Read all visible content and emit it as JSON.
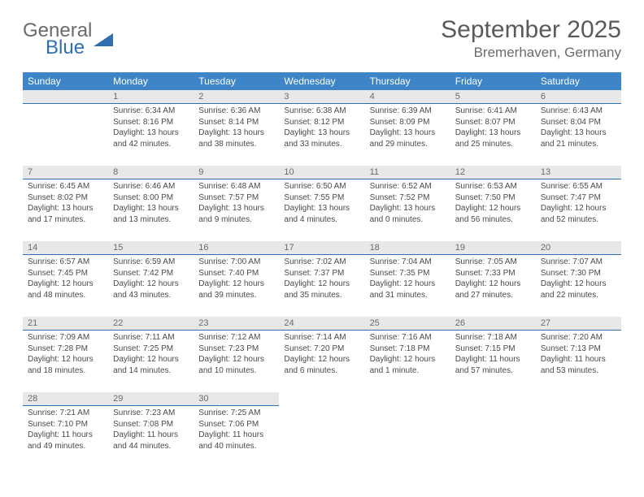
{
  "colors": {
    "header_bg": "#3d85c6",
    "header_text": "#ffffff",
    "daynum_bg": "#e8e8e8",
    "daynum_underline": "#2f6fb0",
    "body_text": "#4a4a4a",
    "title_text": "#5a5a5a",
    "logo_gray": "#6b6b6b",
    "logo_blue": "#2f6fb0",
    "background": "#ffffff"
  },
  "typography": {
    "title_fontsize": 30,
    "location_fontsize": 17,
    "weekday_fontsize": 12,
    "daynum_fontsize": 11,
    "cell_fontsize": 10,
    "font_family": "Arial"
  },
  "logo": {
    "word1": "General",
    "word2": "Blue"
  },
  "title": "September 2025",
  "location": "Bremerhaven, Germany",
  "weekdays": [
    "Sunday",
    "Monday",
    "Tuesday",
    "Wednesday",
    "Thursday",
    "Friday",
    "Saturday"
  ],
  "calendar": {
    "type": "table",
    "columns": 7,
    "rows": 5,
    "start_weekday_index": 1,
    "days": [
      {
        "n": "1",
        "sunrise": "6:34 AM",
        "sunset": "8:16 PM",
        "daylight": "13 hours and 42 minutes."
      },
      {
        "n": "2",
        "sunrise": "6:36 AM",
        "sunset": "8:14 PM",
        "daylight": "13 hours and 38 minutes."
      },
      {
        "n": "3",
        "sunrise": "6:38 AM",
        "sunset": "8:12 PM",
        "daylight": "13 hours and 33 minutes."
      },
      {
        "n": "4",
        "sunrise": "6:39 AM",
        "sunset": "8:09 PM",
        "daylight": "13 hours and 29 minutes."
      },
      {
        "n": "5",
        "sunrise": "6:41 AM",
        "sunset": "8:07 PM",
        "daylight": "13 hours and 25 minutes."
      },
      {
        "n": "6",
        "sunrise": "6:43 AM",
        "sunset": "8:04 PM",
        "daylight": "13 hours and 21 minutes."
      },
      {
        "n": "7",
        "sunrise": "6:45 AM",
        "sunset": "8:02 PM",
        "daylight": "13 hours and 17 minutes."
      },
      {
        "n": "8",
        "sunrise": "6:46 AM",
        "sunset": "8:00 PM",
        "daylight": "13 hours and 13 minutes."
      },
      {
        "n": "9",
        "sunrise": "6:48 AM",
        "sunset": "7:57 PM",
        "daylight": "13 hours and 9 minutes."
      },
      {
        "n": "10",
        "sunrise": "6:50 AM",
        "sunset": "7:55 PM",
        "daylight": "13 hours and 4 minutes."
      },
      {
        "n": "11",
        "sunrise": "6:52 AM",
        "sunset": "7:52 PM",
        "daylight": "13 hours and 0 minutes."
      },
      {
        "n": "12",
        "sunrise": "6:53 AM",
        "sunset": "7:50 PM",
        "daylight": "12 hours and 56 minutes."
      },
      {
        "n": "13",
        "sunrise": "6:55 AM",
        "sunset": "7:47 PM",
        "daylight": "12 hours and 52 minutes."
      },
      {
        "n": "14",
        "sunrise": "6:57 AM",
        "sunset": "7:45 PM",
        "daylight": "12 hours and 48 minutes."
      },
      {
        "n": "15",
        "sunrise": "6:59 AM",
        "sunset": "7:42 PM",
        "daylight": "12 hours and 43 minutes."
      },
      {
        "n": "16",
        "sunrise": "7:00 AM",
        "sunset": "7:40 PM",
        "daylight": "12 hours and 39 minutes."
      },
      {
        "n": "17",
        "sunrise": "7:02 AM",
        "sunset": "7:37 PM",
        "daylight": "12 hours and 35 minutes."
      },
      {
        "n": "18",
        "sunrise": "7:04 AM",
        "sunset": "7:35 PM",
        "daylight": "12 hours and 31 minutes."
      },
      {
        "n": "19",
        "sunrise": "7:05 AM",
        "sunset": "7:33 PM",
        "daylight": "12 hours and 27 minutes."
      },
      {
        "n": "20",
        "sunrise": "7:07 AM",
        "sunset": "7:30 PM",
        "daylight": "12 hours and 22 minutes."
      },
      {
        "n": "21",
        "sunrise": "7:09 AM",
        "sunset": "7:28 PM",
        "daylight": "12 hours and 18 minutes."
      },
      {
        "n": "22",
        "sunrise": "7:11 AM",
        "sunset": "7:25 PM",
        "daylight": "12 hours and 14 minutes."
      },
      {
        "n": "23",
        "sunrise": "7:12 AM",
        "sunset": "7:23 PM",
        "daylight": "12 hours and 10 minutes."
      },
      {
        "n": "24",
        "sunrise": "7:14 AM",
        "sunset": "7:20 PM",
        "daylight": "12 hours and 6 minutes."
      },
      {
        "n": "25",
        "sunrise": "7:16 AM",
        "sunset": "7:18 PM",
        "daylight": "12 hours and 1 minute."
      },
      {
        "n": "26",
        "sunrise": "7:18 AM",
        "sunset": "7:15 PM",
        "daylight": "11 hours and 57 minutes."
      },
      {
        "n": "27",
        "sunrise": "7:20 AM",
        "sunset": "7:13 PM",
        "daylight": "11 hours and 53 minutes."
      },
      {
        "n": "28",
        "sunrise": "7:21 AM",
        "sunset": "7:10 PM",
        "daylight": "11 hours and 49 minutes."
      },
      {
        "n": "29",
        "sunrise": "7:23 AM",
        "sunset": "7:08 PM",
        "daylight": "11 hours and 44 minutes."
      },
      {
        "n": "30",
        "sunrise": "7:25 AM",
        "sunset": "7:06 PM",
        "daylight": "11 hours and 40 minutes."
      }
    ]
  },
  "labels": {
    "sunrise": "Sunrise:",
    "sunset": "Sunset:",
    "daylight": "Daylight:"
  }
}
